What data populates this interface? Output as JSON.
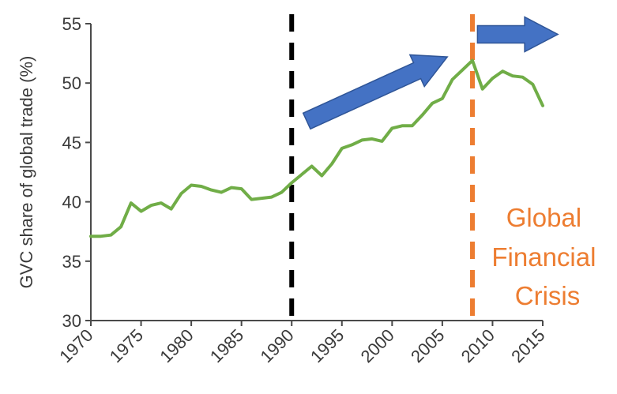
{
  "chart_data": {
    "type": "line",
    "ylabel": "GVC share of global trade (%)",
    "xlim": [
      1970,
      2015
    ],
    "ylim": [
      30,
      55
    ],
    "y_ticks": [
      30,
      35,
      40,
      45,
      50,
      55
    ],
    "x_ticks": [
      1970,
      1975,
      1980,
      1985,
      1990,
      1995,
      2000,
      2005,
      2010,
      2015
    ],
    "grid": false,
    "line_color": "#70ad47",
    "series": [
      {
        "x": [
          1970,
          1971,
          1972,
          1973,
          1974,
          1975,
          1976,
          1977,
          1978,
          1979,
          1980,
          1981,
          1982,
          1983,
          1984,
          1985,
          1986,
          1987,
          1988,
          1989,
          1990,
          1991,
          1992,
          1993,
          1994,
          1995,
          1996,
          1997,
          1998,
          1999,
          2000,
          2001,
          2002,
          2003,
          2004,
          2005,
          2006,
          2007,
          2008,
          2009,
          2010,
          2011,
          2012,
          2013,
          2014,
          2015
        ],
        "y": [
          37.1,
          37.1,
          37.2,
          37.9,
          39.9,
          39.2,
          39.7,
          39.9,
          39.4,
          40.7,
          41.4,
          41.3,
          41.0,
          40.8,
          41.2,
          41.1,
          40.2,
          40.3,
          40.4,
          40.8,
          41.6,
          42.3,
          43.0,
          42.2,
          43.2,
          44.5,
          44.8,
          45.2,
          45.3,
          45.1,
          46.2,
          46.4,
          46.4,
          47.3,
          48.3,
          48.7,
          50.3,
          51.1,
          51.9,
          49.5,
          50.4,
          51.0,
          50.6,
          50.5,
          49.9,
          48.1
        ]
      }
    ],
    "annotations": [
      {
        "type": "vline",
        "x": 1990,
        "color": "#000000",
        "style": "dashed"
      },
      {
        "type": "vline",
        "x": 2008,
        "color": "#ed7d31",
        "style": "dashed"
      },
      {
        "type": "arrow",
        "from": [
          1991.5,
          46.8
        ],
        "to": [
          2005.5,
          52.2
        ],
        "color": "#4472c4"
      },
      {
        "type": "arrow",
        "from": [
          2008.5,
          54.1
        ],
        "to": [
          2016.5,
          54.1
        ],
        "color": "#4472c4"
      },
      {
        "type": "text",
        "lines": [
          "Global",
          "Financial",
          "Crisis"
        ],
        "color": "#ed7d31"
      }
    ]
  }
}
